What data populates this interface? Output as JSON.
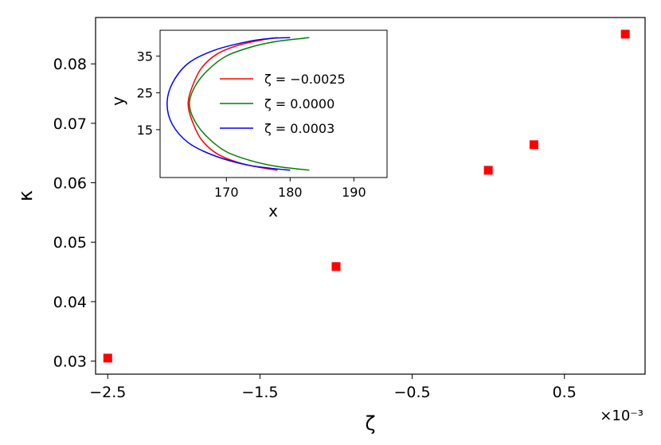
{
  "chart_data": [
    {
      "type": "scatter",
      "xlabel": "ζ",
      "ylabel": "κ",
      "x_scale_label": "×10⁻³",
      "xlim": [
        -2.58,
        1.03
      ],
      "ylim": [
        0.0278,
        0.0878
      ],
      "xticks": [
        -2.5,
        -1.5,
        -0.5,
        0.5
      ],
      "xtick_labels": [
        "−2.5",
        "−1.5",
        "−0.5",
        "0.5"
      ],
      "yticks": [
        0.03,
        0.04,
        0.05,
        0.06,
        0.07,
        0.08
      ],
      "ytick_labels": [
        "0.03",
        "0.04",
        "0.05",
        "0.06",
        "0.07",
        "0.08"
      ],
      "marker": "square",
      "color": "#ff0000",
      "x": [
        -2.5,
        -1.0,
        0.0,
        0.3,
        0.9
      ],
      "y": [
        0.0305,
        0.0459,
        0.0621,
        0.0664,
        0.085
      ]
    },
    {
      "type": "line",
      "xlabel": "x",
      "ylabel": "y",
      "xlim": [
        159.6,
        195.2
      ],
      "ylim": [
        2.0,
        42.0
      ],
      "xticks": [
        170,
        180,
        190
      ],
      "xtick_labels": [
        "170",
        "180",
        "190"
      ],
      "yticks": [
        15,
        25,
        35
      ],
      "ytick_labels": [
        "15",
        "25",
        "35"
      ],
      "legend_position": "upper-center",
      "series": [
        {
          "name": "ζ = −0.0025",
          "color": "#ff0000",
          "x": [
            178.0,
            176.0,
            172.0,
            168.5,
            166.0,
            164.5,
            164.0,
            164.5,
            166.0,
            168.5,
            172.0,
            176.0,
            178.0
          ],
          "y": [
            40.0,
            39.5,
            38.0,
            35.5,
            31.5,
            26.0,
            22.0,
            18.0,
            12.5,
            8.5,
            6.0,
            4.5,
            4.0
          ]
        },
        {
          "name": "ζ = 0.0000",
          "color": "#008000",
          "x": [
            183.0,
            178.0,
            174.0,
            170.0,
            167.0,
            165.0,
            164.2,
            165.0,
            167.0,
            170.0,
            174.0,
            178.0,
            183.0
          ],
          "y": [
            40.0,
            39.0,
            37.5,
            35.0,
            31.0,
            26.5,
            22.0,
            17.5,
            13.0,
            9.0,
            6.5,
            5.0,
            4.0
          ]
        },
        {
          "name": "ζ = 0.0003",
          "color": "#0000ff",
          "x": [
            180.0,
            177.0,
            173.0,
            168.0,
            164.0,
            161.5,
            160.7,
            161.5,
            164.0,
            168.0,
            173.0,
            177.0,
            180.0
          ],
          "y": [
            40.0,
            39.8,
            38.8,
            36.5,
            33.0,
            27.5,
            22.0,
            16.5,
            11.5,
            8.0,
            5.5,
            4.5,
            4.0
          ]
        }
      ]
    }
  ]
}
